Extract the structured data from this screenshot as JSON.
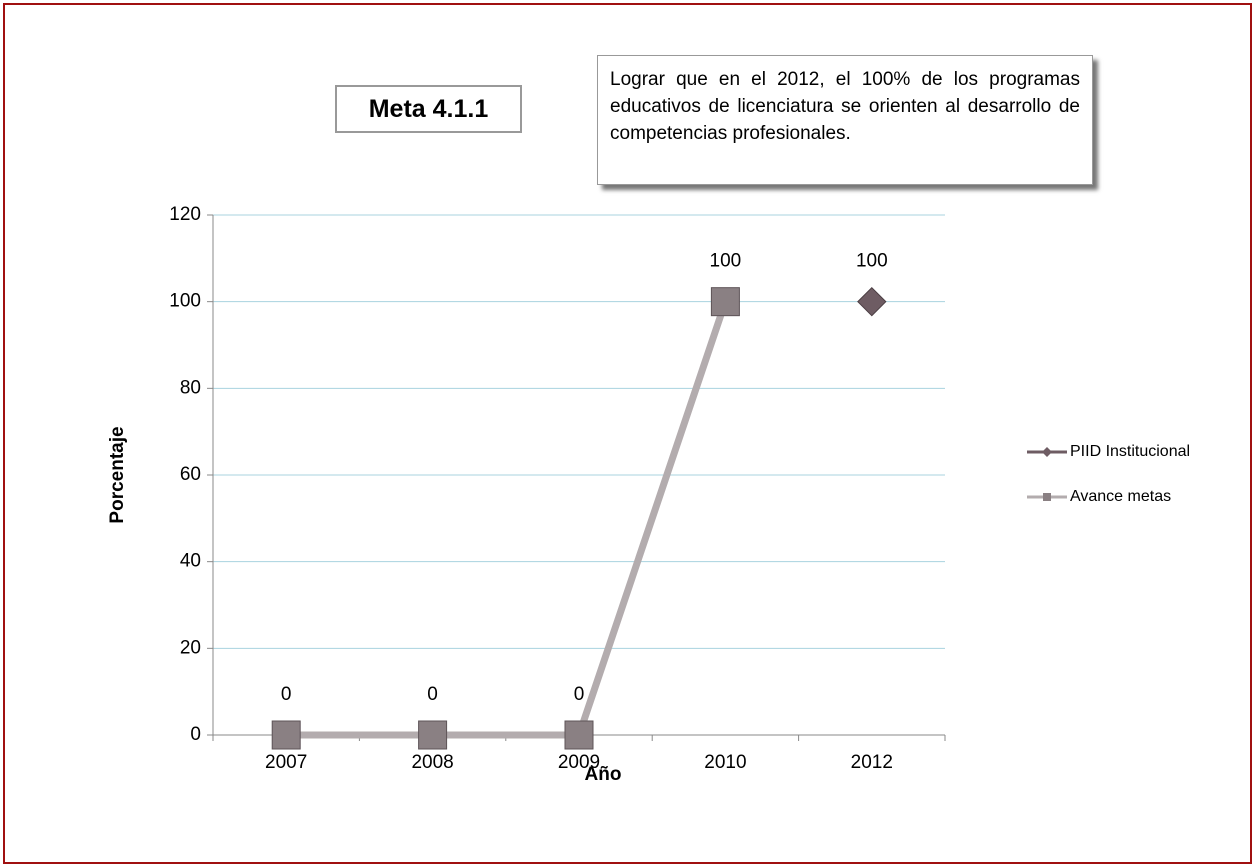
{
  "chart_data": {
    "type": "line",
    "title": "Meta 4.1.1",
    "annotation": "Lograr que en el 2012, el 100% de los programas educativos de licenciatura se orienten al desarrollo de competencias profesionales.",
    "x_label": "Año",
    "y_label": "Porcentaje",
    "categories": [
      "2007",
      "2008",
      "2009",
      "2010",
      "2012"
    ],
    "series": [
      {
        "name": "PIID Institucional",
        "color": "#6e5c63",
        "marker": "diamond",
        "values": [
          null,
          null,
          null,
          null,
          100
        ]
      },
      {
        "name": "Avance metas",
        "color": "#b3acae",
        "marker": "square",
        "values": [
          0,
          0,
          0,
          100,
          null
        ]
      }
    ],
    "ylim": [
      0,
      120
    ],
    "yticks": [
      0,
      20,
      40,
      60,
      80,
      100,
      120
    ],
    "grid": true,
    "legend": "right"
  }
}
